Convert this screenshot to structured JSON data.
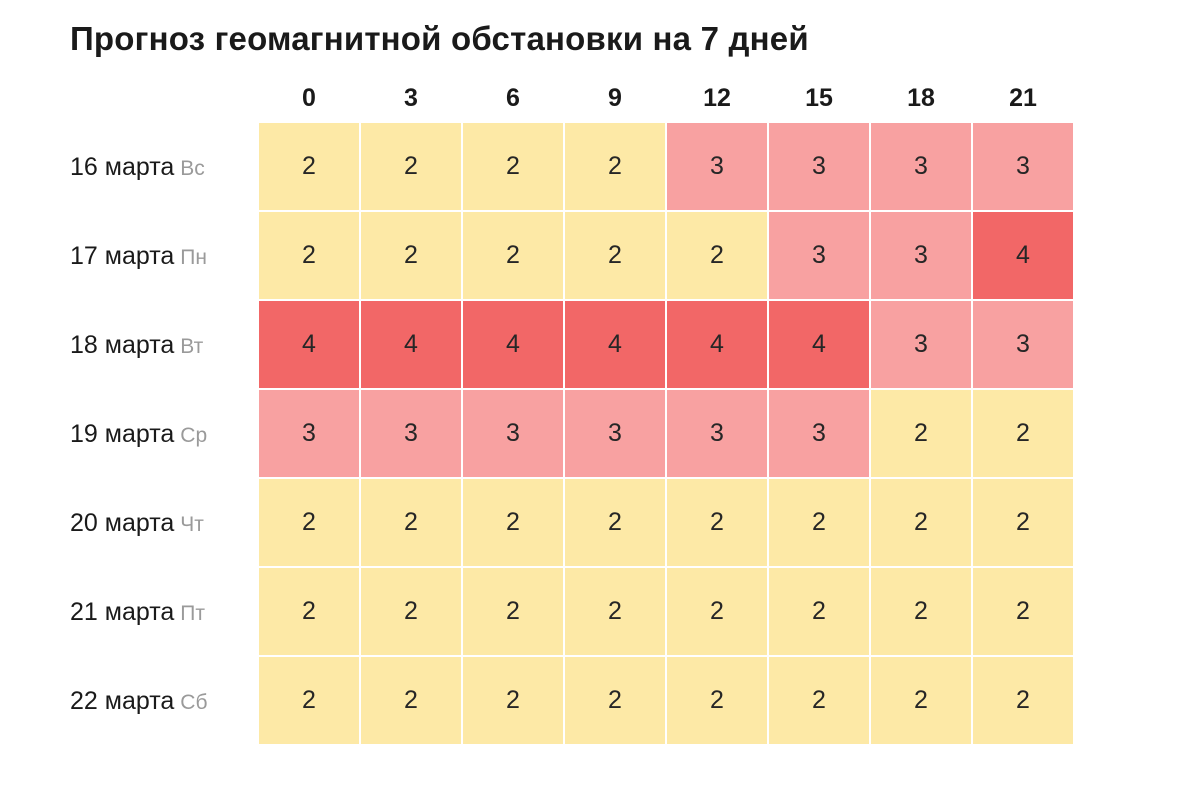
{
  "colors": {
    "level_2": "#fde9a6",
    "level_3": "#f8a1a1",
    "level_4": "#f26767"
  },
  "chart_data": {
    "type": "heatmap",
    "title": "Прогноз геомагнитной обстановки на 7 дней",
    "columns": [
      "0",
      "3",
      "6",
      "9",
      "12",
      "15",
      "18",
      "21"
    ],
    "rows": [
      {
        "date": "16 марта",
        "day": "Вс",
        "values": [
          2,
          2,
          2,
          2,
          3,
          3,
          3,
          3
        ]
      },
      {
        "date": "17 марта",
        "day": "Пн",
        "values": [
          2,
          2,
          2,
          2,
          2,
          3,
          3,
          4
        ]
      },
      {
        "date": "18 марта",
        "day": "Вт",
        "values": [
          4,
          4,
          4,
          4,
          4,
          4,
          3,
          3
        ]
      },
      {
        "date": "19 марта",
        "day": "Ср",
        "values": [
          3,
          3,
          3,
          3,
          3,
          3,
          2,
          2
        ]
      },
      {
        "date": "20 марта",
        "day": "Чт",
        "values": [
          2,
          2,
          2,
          2,
          2,
          2,
          2,
          2
        ]
      },
      {
        "date": "21 марта",
        "day": "Пт",
        "values": [
          2,
          2,
          2,
          2,
          2,
          2,
          2,
          2
        ]
      },
      {
        "date": "22 марта",
        "day": "Сб",
        "values": [
          2,
          2,
          2,
          2,
          2,
          2,
          2,
          2
        ]
      }
    ]
  }
}
